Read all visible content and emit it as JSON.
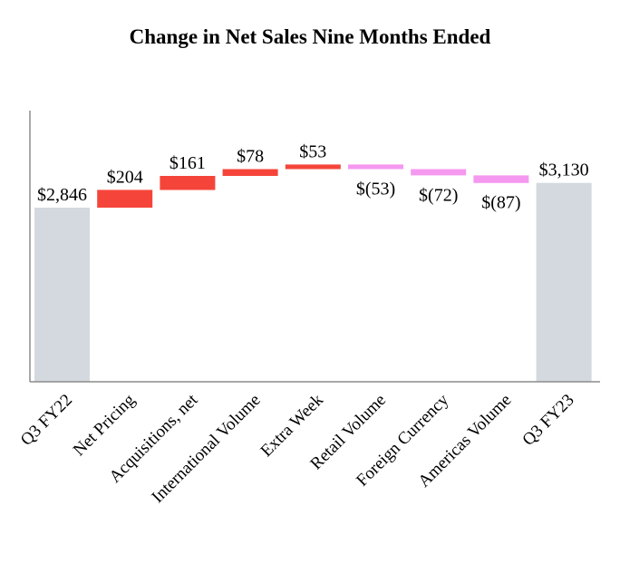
{
  "chart_data": {
    "type": "bar",
    "subtype": "waterfall",
    "title": "Change in Net Sales Nine Months Ended",
    "xlabel": "",
    "ylabel": "",
    "grid": false,
    "legend": "none",
    "categories": [
      "Q3 FY22",
      "Net Pricing",
      "Acquisitions, net",
      "International Volume",
      "Extra Week",
      "Retail Volume",
      "Foreign Currency",
      "Americas Volume",
      "Q3 FY23"
    ],
    "values": [
      2846,
      204,
      161,
      78,
      53,
      -53,
      -72,
      -87,
      3130
    ],
    "labels": [
      "$2,846",
      "$204",
      "$161",
      "$78",
      "$53",
      "$(53)",
      "$(72)",
      "$(87)",
      "$3,130"
    ],
    "kinds": [
      "total",
      "increase",
      "increase",
      "increase",
      "increase",
      "decrease",
      "decrease",
      "decrease",
      "total"
    ],
    "colors": {
      "total": "#d3d9df",
      "increase": "#f5453a",
      "decrease": "#f598f0",
      "axis": "#8c8c8c"
    }
  }
}
